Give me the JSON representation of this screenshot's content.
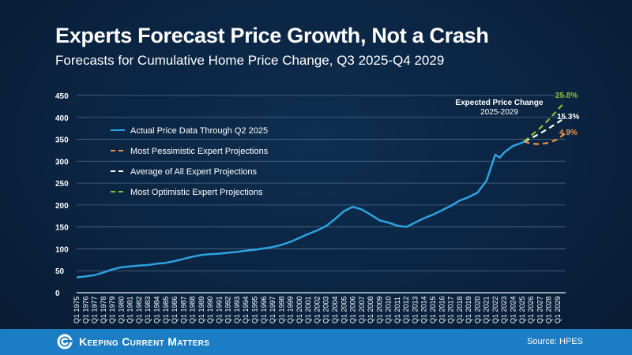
{
  "title": "Experts Forecast Price Growth, Not a Crash",
  "subtitle": "Forecasts for Cumulative Home Price Change, Q3 2025-Q4 2029",
  "footer": {
    "brand": "Keeping Current Matters",
    "source": "Source: HPES"
  },
  "colors": {
    "actual": "#2ea3e0",
    "pessimistic": "#f0944a",
    "average": "#ffffff",
    "optimistic": "#86c232",
    "background": "#0a2340",
    "footer": "#1b7dc3"
  },
  "chart_data": {
    "type": "line",
    "title": "",
    "ylim": [
      0,
      450
    ],
    "yticks": [
      0,
      50,
      100,
      150,
      200,
      250,
      300,
      350,
      400,
      450
    ],
    "grid": true,
    "legend_position": "top-left",
    "categories": [
      "Q1 1975",
      "Q1 1976",
      "Q1 1977",
      "Q1 1978",
      "Q1 1979",
      "Q1 1980",
      "Q1 1981",
      "Q1 1982",
      "Q1 1983",
      "Q1 1984",
      "Q1 1985",
      "Q1 1986",
      "Q1 1987",
      "Q1 1988",
      "Q1 1989",
      "Q1 1990",
      "Q1 1991",
      "Q1 1992",
      "Q1 1993",
      "Q1 1994",
      "Q1 1995",
      "Q1 1996",
      "Q1 1997",
      "Q1 1998",
      "Q1 1999",
      "Q1 2000",
      "Q1 2001",
      "Q1 2002",
      "Q1 2003",
      "Q1 2004",
      "Q1 2005",
      "Q1 2006",
      "Q1 2007",
      "Q1 2008",
      "Q1 2009",
      "Q1 2010",
      "Q1 2011",
      "Q1 2012",
      "Q1 2013",
      "Q1 2014",
      "Q1 2015",
      "Q1 2016",
      "Q1 2017",
      "Q1 2018",
      "Q1 2019",
      "Q1 2020",
      "Q1 2021",
      "Q1 2022",
      "Q1 2023",
      "Q1 2024",
      "Q1 2025",
      "Q1 2026",
      "Q1 2027",
      "Q1 2028",
      "Q1 2029"
    ],
    "series": [
      {
        "name": "Actual Price Data Through Q2 2025",
        "style": "solid",
        "x": [
          1975,
          1976,
          1977,
          1978,
          1979,
          1980,
          1981,
          1982,
          1983,
          1984,
          1985,
          1986,
          1987,
          1988,
          1989,
          1990,
          1991,
          1992,
          1993,
          1994,
          1995,
          1996,
          1997,
          1998,
          1999,
          2000,
          2001,
          2002,
          2003,
          2004,
          2005,
          2006,
          2006.5,
          2007,
          2008,
          2009,
          2010,
          2011,
          2012,
          2013,
          2014,
          2015,
          2016,
          2017,
          2018,
          2019,
          2020,
          2021,
          2021.5,
          2022,
          2022.5,
          2023,
          2024,
          2025,
          2025.25
        ],
        "y": [
          35,
          37,
          40,
          46,
          53,
          58,
          60,
          62,
          63,
          66,
          68,
          72,
          77,
          82,
          86,
          88,
          89,
          91,
          93,
          96,
          98,
          101,
          104,
          109,
          116,
          125,
          134,
          142,
          152,
          168,
          186,
          196,
          193,
          190,
          178,
          165,
          160,
          153,
          150,
          160,
          170,
          178,
          188,
          198,
          210,
          218,
          228,
          255,
          285,
          315,
          308,
          320,
          335,
          342,
          345
        ]
      },
      {
        "name": "Most Pessimistic Expert Projections",
        "style": "dashed",
        "x": [
          2025.25,
          2026,
          2027,
          2028,
          2029,
          2029.75
        ],
        "y": [
          345,
          340,
          339,
          342,
          350,
          362
        ]
      },
      {
        "name": "Average of All Expert Projections",
        "style": "dashed",
        "x": [
          2025.25,
          2026,
          2027,
          2028,
          2029,
          2029.75
        ],
        "y": [
          345,
          352,
          363,
          375,
          388,
          398
        ]
      },
      {
        "name": "Most Optimistic Expert Projections",
        "style": "dashed",
        "x": [
          2025.25,
          2026,
          2027,
          2028,
          2029,
          2029.75
        ],
        "y": [
          345,
          358,
          375,
          395,
          417,
          434
        ]
      }
    ],
    "annotations": {
      "heading": "Expected Price Change",
      "period": "2025-2029",
      "optimistic_label": "25.8%",
      "average_label": "15.3%",
      "pessimistic_label": "4.9%"
    }
  }
}
